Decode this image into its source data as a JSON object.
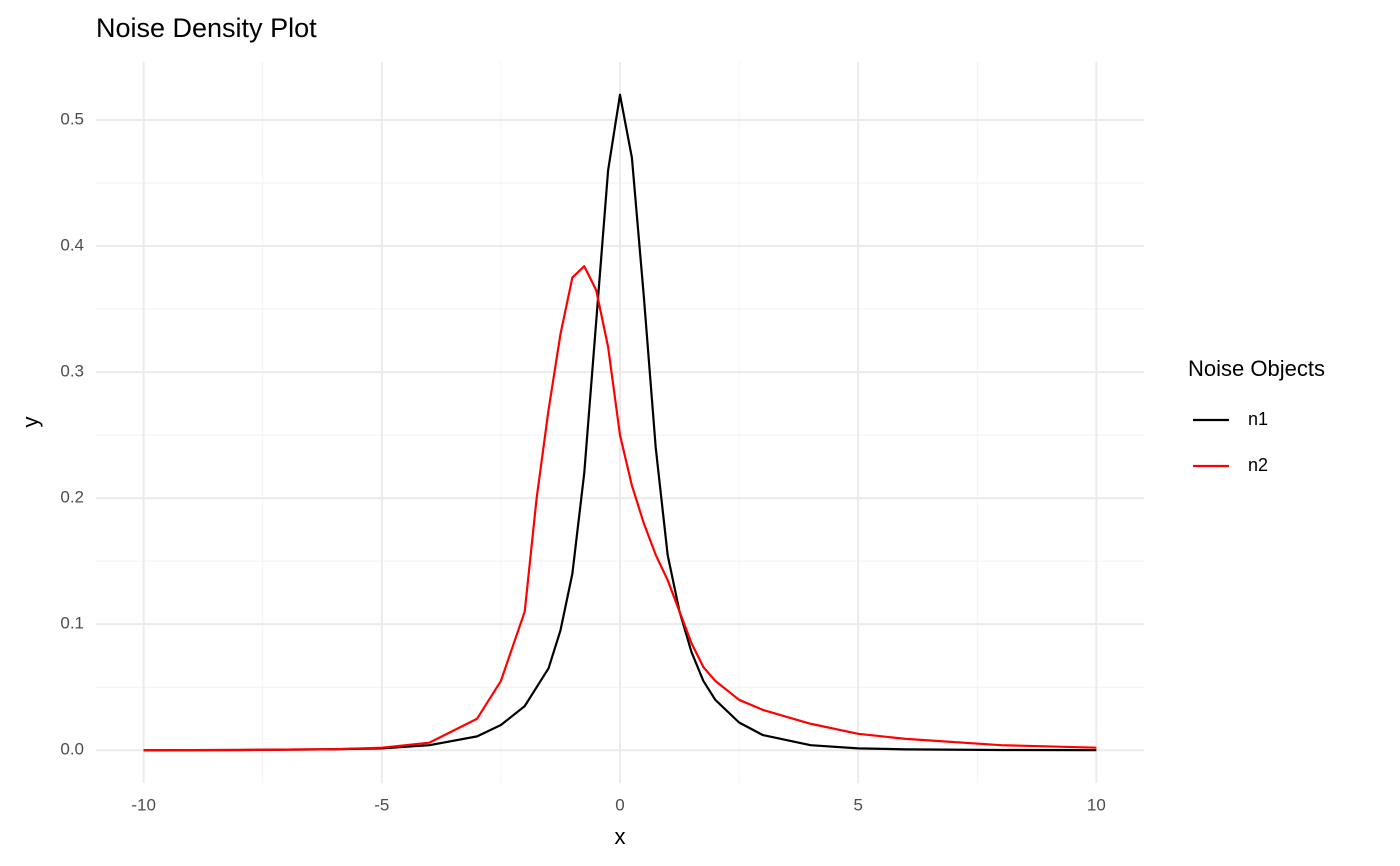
{
  "chart_data": {
    "type": "line",
    "title": "Noise Density Plot",
    "x_label": "x",
    "y_label": "y",
    "legend_title": "Noise Objects",
    "legend_position": "right",
    "grid": true,
    "x": [
      -10,
      -8,
      -6,
      -5,
      -4,
      -3,
      -2.5,
      -2,
      -1.75,
      -1.5,
      -1.25,
      -1,
      -0.75,
      -0.5,
      -0.25,
      0,
      0.25,
      0.5,
      0.75,
      1,
      1.25,
      1.5,
      1.75,
      2,
      2.5,
      3,
      4,
      5,
      6,
      8,
      10
    ],
    "series": [
      {
        "name": "n1",
        "color": "#000000",
        "values": [
          0,
          0.0002,
          0.0008,
          0.0015,
          0.004,
          0.011,
          0.02,
          0.035,
          0.05,
          0.065,
          0.095,
          0.14,
          0.22,
          0.34,
          0.46,
          0.52,
          0.47,
          0.36,
          0.24,
          0.155,
          0.11,
          0.078,
          0.055,
          0.04,
          0.022,
          0.012,
          0.004,
          0.0015,
          0.0007,
          0.0002,
          0.0001
        ]
      },
      {
        "name": "n2",
        "color": "#ff0000",
        "values": [
          0,
          0.0002,
          0.0008,
          0.002,
          0.006,
          0.025,
          0.055,
          0.11,
          0.2,
          0.27,
          0.33,
          0.375,
          0.384,
          0.365,
          0.32,
          0.25,
          0.21,
          0.18,
          0.155,
          0.135,
          0.11,
          0.085,
          0.066,
          0.055,
          0.04,
          0.032,
          0.021,
          0.013,
          0.009,
          0.004,
          0.002
        ]
      }
    ],
    "xlim": [
      -11,
      11
    ],
    "ylim": [
      -0.026,
      0.546
    ],
    "xticks": [
      -10,
      -5,
      0,
      5,
      10
    ],
    "yticks": [
      {
        "value": 0,
        "label": "0.0"
      },
      0.1,
      0.2,
      0.3,
      0.4,
      0.5
    ]
  }
}
